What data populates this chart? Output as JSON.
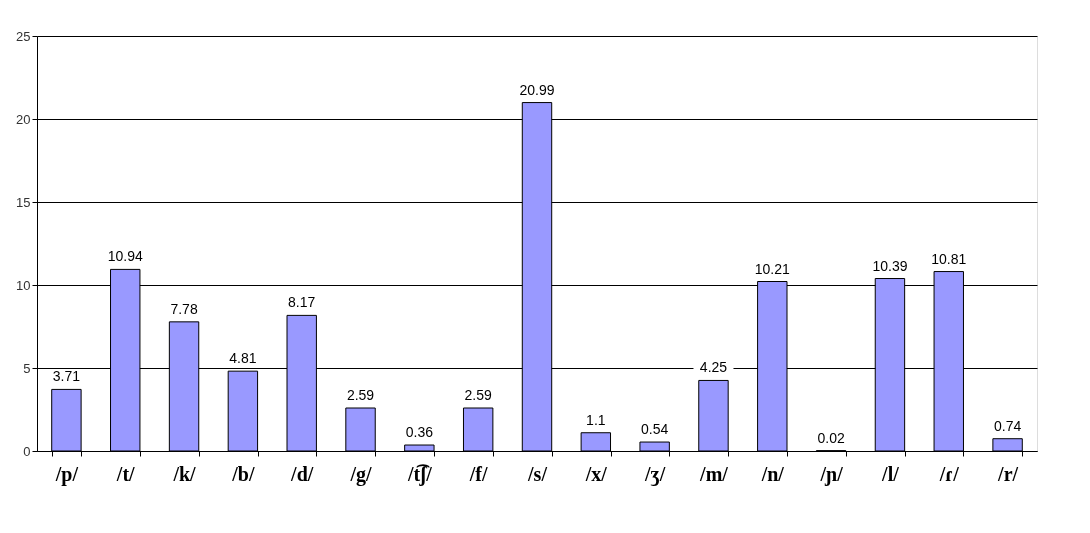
{
  "chart_data": {
    "type": "bar",
    "categories": [
      "/p/",
      "/t/",
      "/k/",
      "/b/",
      "/d/",
      "/g/",
      "/t͡ʃ/",
      "/f/",
      "/s/",
      "/x/",
      "/ʒ/",
      "/m/",
      "/n/",
      "/ɲ/",
      "/l/",
      "/ɾ/",
      "/r/"
    ],
    "values": [
      3.71,
      10.94,
      7.78,
      4.81,
      8.17,
      2.59,
      0.36,
      2.59,
      20.99,
      1.1,
      0.54,
      4.25,
      10.21,
      0.02,
      10.39,
      10.81,
      0.74
    ],
    "color": "#9999ff",
    "ylim": [
      0,
      25
    ],
    "yticks": [
      0,
      5,
      10,
      15,
      20,
      25
    ],
    "grid": "y",
    "data_labels": true
  }
}
